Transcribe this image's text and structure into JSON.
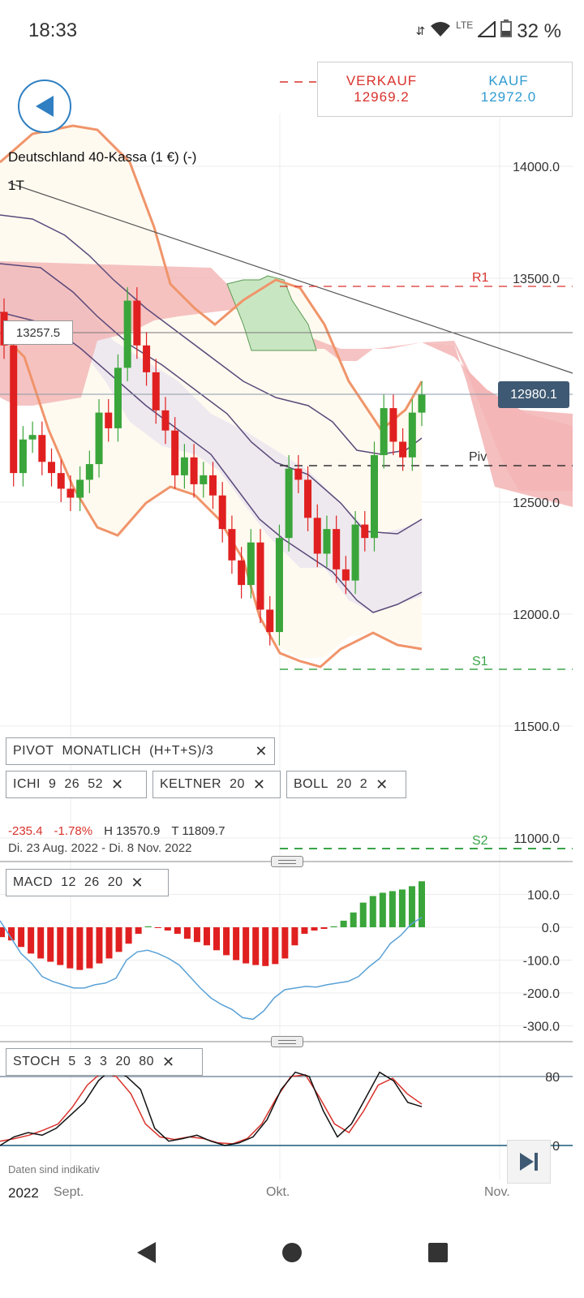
{
  "status": {
    "time": "18:33",
    "network": "LTE",
    "battery": "32 %"
  },
  "quote": {
    "sell_label": "VERKAUF",
    "sell_price": "12969.2",
    "buy_label": "KAUF",
    "buy_price": "12972.0",
    "sell_color": "#d9322c",
    "buy_color": "#2f9bd0"
  },
  "instrument": {
    "title": "Deutschland 40-Kassa (1 €) (-)",
    "timeframe": "1T"
  },
  "price_tags": {
    "crosshair": "13257.5",
    "last": "12980.1"
  },
  "levels": {
    "r1": "R1",
    "pivot": "Piv",
    "s1": "S1",
    "s2": "S2"
  },
  "chips": {
    "pivot": [
      "PIVOT",
      "MONATLICH",
      "(H+T+S)/3"
    ],
    "ichi": [
      "ICHI",
      "9",
      "26",
      "52"
    ],
    "keltner": [
      "KELTNER",
      "20"
    ],
    "boll": [
      "BOLL",
      "20",
      "2"
    ],
    "macd": [
      "MACD",
      "12",
      "26",
      "20"
    ],
    "stoch": [
      "STOCH",
      "5",
      "3",
      "3",
      "20",
      "80"
    ]
  },
  "stats": {
    "change": "-235.4",
    "change_pct": "-1.78%",
    "high": "H 13570.9",
    "low": "T 11809.7",
    "range": "Di. 23 Aug. 2022 - Di. 8 Nov. 2022"
  },
  "footer": {
    "disclaimer": "Daten sind indikativ",
    "year": "2022",
    "months": [
      "Sept.",
      "Okt.",
      "Nov."
    ]
  },
  "chart_data": {
    "type": "candlestick",
    "price_axis": {
      "ticks": [
        14000,
        13500,
        12500,
        12000,
        11500,
        11000
      ],
      "labels": [
        "14000.0",
        "13500.0",
        "12500.0",
        "12000.0",
        "11500.0",
        "11000.0"
      ],
      "range": [
        11000,
        14500
      ]
    },
    "levels": {
      "R1": 13470,
      "Piv": 12700,
      "S1": 11765,
      "S2": 10950,
      "last": 12980.1,
      "crosshair": 13257.5
    },
    "candles": [
      {
        "o": 13350,
        "c": 13200
      },
      {
        "o": 13200,
        "c": 12630
      },
      {
        "o": 12630,
        "c": 12780
      },
      {
        "o": 12780,
        "c": 12800
      },
      {
        "o": 12800,
        "c": 12680
      },
      {
        "o": 12680,
        "c": 12630
      },
      {
        "o": 12630,
        "c": 12560
      },
      {
        "o": 12560,
        "c": 12520
      },
      {
        "o": 12520,
        "c": 12600
      },
      {
        "o": 12600,
        "c": 12670
      },
      {
        "o": 12670,
        "c": 12900
      },
      {
        "o": 12900,
        "c": 12830
      },
      {
        "o": 12830,
        "c": 13100
      },
      {
        "o": 13100,
        "c": 13400
      },
      {
        "o": 13400,
        "c": 13200
      },
      {
        "o": 13200,
        "c": 13080
      },
      {
        "o": 13080,
        "c": 12910
      },
      {
        "o": 12910,
        "c": 12820
      },
      {
        "o": 12820,
        "c": 12620
      },
      {
        "o": 12620,
        "c": 12700
      },
      {
        "o": 12700,
        "c": 12580
      },
      {
        "o": 12580,
        "c": 12620
      },
      {
        "o": 12620,
        "c": 12530
      },
      {
        "o": 12530,
        "c": 12380
      },
      {
        "o": 12380,
        "c": 12240
      },
      {
        "o": 12240,
        "c": 12130
      },
      {
        "o": 12130,
        "c": 12320
      },
      {
        "o": 12320,
        "c": 12020
      },
      {
        "o": 12020,
        "c": 11920
      },
      {
        "o": 11920,
        "c": 12340
      },
      {
        "o": 12340,
        "c": 12650
      },
      {
        "o": 12650,
        "c": 12600
      },
      {
        "o": 12600,
        "c": 12430
      },
      {
        "o": 12430,
        "c": 12270
      },
      {
        "o": 12270,
        "c": 12380
      },
      {
        "o": 12380,
        "c": 12200
      },
      {
        "o": 12200,
        "c": 12150
      },
      {
        "o": 12150,
        "c": 12400
      },
      {
        "o": 12400,
        "c": 12340
      },
      {
        "o": 12340,
        "c": 12710
      },
      {
        "o": 12710,
        "c": 12920
      },
      {
        "o": 12920,
        "c": 12770
      },
      {
        "o": 12770,
        "c": 12700
      },
      {
        "o": 12700,
        "c": 12900
      },
      {
        "o": 12900,
        "c": 12980
      }
    ],
    "macd_axis": {
      "labels": [
        "100.0",
        "0.0",
        "-100.0",
        "-200.0",
        "-300.0"
      ],
      "values": [
        100,
        0,
        -100,
        -200,
        -300
      ]
    },
    "macd_hist": [
      -30,
      -40,
      -60,
      -80,
      -95,
      -105,
      -115,
      -125,
      -130,
      -125,
      -110,
      -95,
      -75,
      -50,
      -20,
      3,
      -2,
      -10,
      -20,
      -35,
      -45,
      -55,
      -70,
      -85,
      -100,
      -110,
      -115,
      -118,
      -112,
      -95,
      -55,
      -20,
      -10,
      -5,
      3,
      20,
      45,
      75,
      95,
      105,
      110,
      115,
      125,
      140
    ],
    "macd_line": [
      20,
      -30,
      -80,
      -110,
      -150,
      -165,
      -175,
      -185,
      -185,
      -175,
      -170,
      -155,
      -100,
      -75,
      -70,
      -80,
      -95,
      -115,
      -150,
      -185,
      -215,
      -235,
      -250,
      -275,
      -280,
      -255,
      -215,
      -190,
      -185,
      -180,
      -182,
      -175,
      -170,
      -165,
      -150,
      -120,
      -95,
      -50,
      -25,
      10,
      30
    ],
    "stoch_axis": {
      "labels": [
        "80",
        "0"
      ],
      "values": [
        80,
        0
      ]
    },
    "stoch_k": [
      0,
      10,
      15,
      12,
      20,
      35,
      50,
      75,
      90,
      80,
      65,
      20,
      5,
      8,
      12,
      5,
      0,
      3,
      10,
      30,
      65,
      85,
      80,
      40,
      10,
      25,
      55,
      85,
      75,
      50,
      45
    ],
    "stoch_d": [
      5,
      8,
      12,
      18,
      25,
      45,
      70,
      85,
      80,
      60,
      25,
      10,
      7,
      10,
      8,
      3,
      2,
      8,
      25,
      55,
      80,
      82,
      55,
      25,
      15,
      40,
      70,
      78,
      60,
      48
    ]
  }
}
